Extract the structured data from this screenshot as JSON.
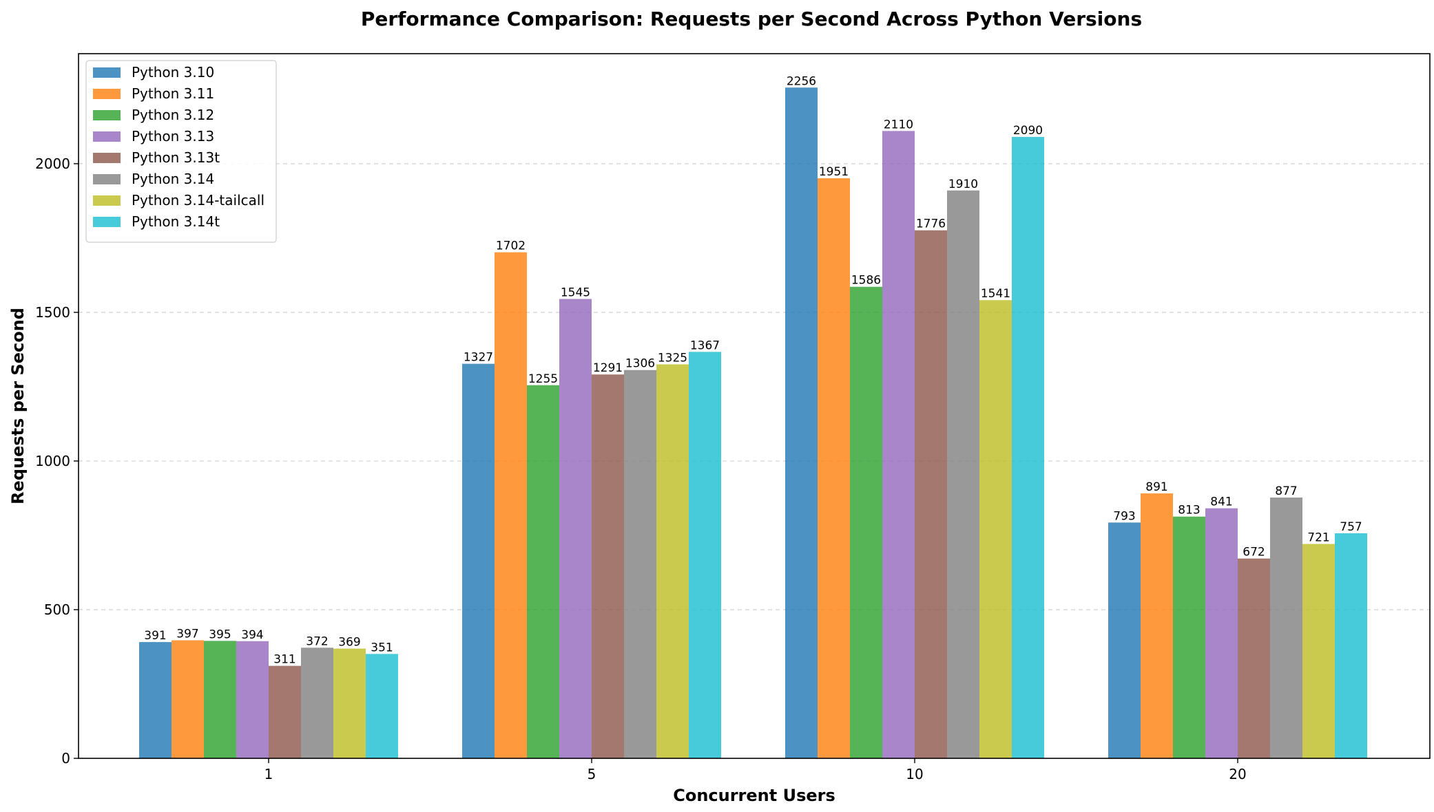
{
  "chart_data": {
    "type": "bar",
    "title": "Performance Comparison: Requests per Second Across Python Versions",
    "xlabel": "Concurrent Users",
    "ylabel": "Requests per Second",
    "categories": [
      "1",
      "5",
      "10",
      "20"
    ],
    "ylim": [
      0,
      2370
    ],
    "yticks": [
      0,
      500,
      1000,
      1500,
      2000
    ],
    "grid": true,
    "legend_position": "top-left",
    "series": [
      {
        "name": "Python 3.10",
        "color": "#1f77b4",
        "values": [
          391,
          1327,
          2256,
          793
        ]
      },
      {
        "name": "Python 3.11",
        "color": "#ff7f0e",
        "values": [
          397,
          1702,
          1951,
          891
        ]
      },
      {
        "name": "Python 3.12",
        "color": "#2ca02c",
        "values": [
          395,
          1255,
          1586,
          813
        ]
      },
      {
        "name": "Python 3.13",
        "color": "#9467bd",
        "values": [
          394,
          1545,
          2110,
          841
        ]
      },
      {
        "name": "Python 3.13t",
        "color": "#8c564b",
        "values": [
          311,
          1291,
          1776,
          672
        ]
      },
      {
        "name": "Python 3.14",
        "color": "#7f7f7f",
        "values": [
          372,
          1306,
          1910,
          877
        ]
      },
      {
        "name": "Python 3.14-tailcall",
        "color": "#bcbd22",
        "values": [
          369,
          1325,
          1541,
          721
        ]
      },
      {
        "name": "Python 3.14t",
        "color": "#17becf",
        "values": [
          351,
          1367,
          2090,
          757
        ]
      }
    ]
  }
}
